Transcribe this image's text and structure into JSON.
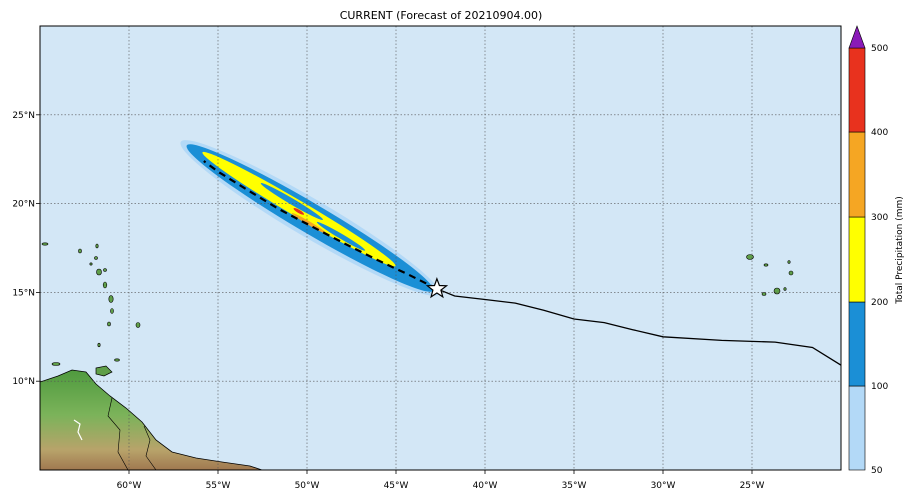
{
  "title": "CURRENT (Forecast of 20210904.00)",
  "map": {
    "lon_range": [
      -65,
      -20
    ],
    "lat_range": [
      5,
      30
    ],
    "ocean_color": "#d3e7f6",
    "grid_style": "dotted",
    "lon_ticks": [
      {
        "value": -60,
        "label": "60°W"
      },
      {
        "value": -55,
        "label": "55°W"
      },
      {
        "value": -50,
        "label": "50°W"
      },
      {
        "value": -45,
        "label": "45°W"
      },
      {
        "value": -40,
        "label": "40°W"
      },
      {
        "value": -35,
        "label": "35°W"
      },
      {
        "value": -30,
        "label": "30°W"
      },
      {
        "value": -25,
        "label": "25°W"
      }
    ],
    "lat_ticks": [
      {
        "value": 10,
        "label": "10°N"
      },
      {
        "value": 15,
        "label": "15°N"
      },
      {
        "value": 20,
        "label": "20°N"
      },
      {
        "value": 25,
        "label": "25°N"
      }
    ],
    "storm_position": {
      "lon": -42.7,
      "lat": 15.2,
      "marker": "star-icon"
    },
    "observed_track": [
      [
        -20,
        10.9
      ],
      [
        -21.6,
        11.9
      ],
      [
        -23.7,
        12.2
      ],
      [
        -26.7,
        12.3
      ],
      [
        -30,
        12.5
      ],
      [
        -31.7,
        12.9
      ],
      [
        -33.3,
        13.3
      ],
      [
        -35,
        13.5
      ],
      [
        -36.7,
        14
      ],
      [
        -38.3,
        14.4
      ],
      [
        -40,
        14.6
      ],
      [
        -41.7,
        14.8
      ],
      [
        -42.7,
        15.2
      ]
    ],
    "forecast_track": [
      [
        -42.7,
        15.2
      ],
      [
        -44.3,
        16.0
      ],
      [
        -46.0,
        16.8
      ],
      [
        -47.8,
        17.7
      ],
      [
        -49.7,
        18.7
      ],
      [
        -51.6,
        19.7
      ],
      [
        -53.4,
        20.8
      ],
      [
        -55.0,
        21.8
      ],
      [
        -55.8,
        22.4
      ]
    ]
  },
  "colorbar": {
    "label": "Total Precipitation (mm)",
    "levels": [
      "50",
      "100",
      "200",
      "300",
      "400",
      "500"
    ],
    "colors": [
      "#b3d9f7",
      "#1b8fd6",
      "#ffff00",
      "#f5a623",
      "#e8321e"
    ],
    "extend_color": "#8a1ab8"
  }
}
